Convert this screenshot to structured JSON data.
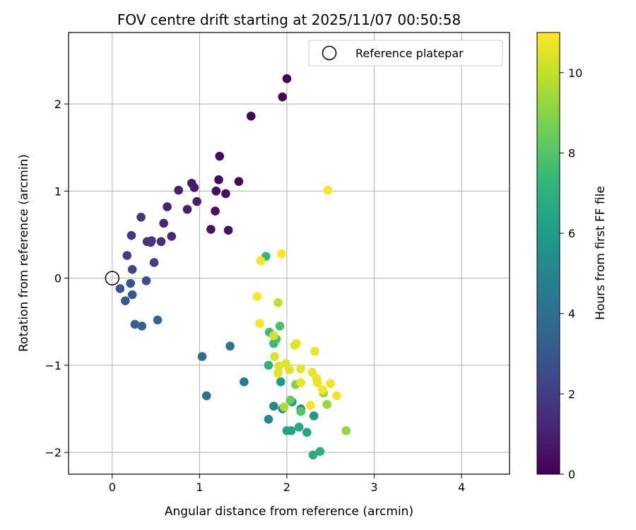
{
  "chart_data": {
    "type": "scatter",
    "title": "FOV centre drift starting at 2025/11/07 00:50:58",
    "xlabel": "Angular distance from reference (arcmin)",
    "ylabel": "Rotation from reference (arcmin)",
    "xlim": [
      -0.5,
      4.55
    ],
    "ylim": [
      -2.25,
      2.82
    ],
    "xticks": [
      0,
      1,
      2,
      3,
      4
    ],
    "xtick_labels": [
      "0",
      "1",
      "2",
      "3",
      "4"
    ],
    "yticks": [
      -2,
      -1,
      0,
      1,
      2
    ],
    "ytick_labels": [
      "−2",
      "−1",
      "0",
      "1",
      "2"
    ],
    "grid": true,
    "legend": {
      "position": "top-right",
      "entries": [
        "Reference platepar"
      ]
    },
    "reference_point": {
      "x": 0,
      "y": 0
    },
    "colorbar": {
      "label": "Hours from first FF file",
      "range": [
        0,
        11
      ],
      "ticks": [
        0,
        2,
        4,
        6,
        8,
        10
      ],
      "tick_labels": [
        "0",
        "2",
        "4",
        "6",
        "8",
        "10"
      ],
      "colormap": "viridis"
    },
    "colormap_stops": [
      "#440154",
      "#482878",
      "#3e4989",
      "#31688e",
      "#26828e",
      "#1f9e89",
      "#35b779",
      "#6ece58",
      "#b5de2b",
      "#fde725"
    ],
    "marker_edge_color": "#000000",
    "points": [
      {
        "x": 2.0,
        "y": 2.29,
        "h": 0.05
      },
      {
        "x": 1.95,
        "y": 2.08,
        "h": 0.1
      },
      {
        "x": 1.59,
        "y": 1.86,
        "h": 0.15
      },
      {
        "x": 1.23,
        "y": 1.4,
        "h": 0.3
      },
      {
        "x": 1.22,
        "y": 1.13,
        "h": 0.35
      },
      {
        "x": 1.45,
        "y": 1.11,
        "h": 0.25
      },
      {
        "x": 1.19,
        "y": 1.0,
        "h": 0.4
      },
      {
        "x": 1.3,
        "y": 0.97,
        "h": 0.45
      },
      {
        "x": 1.18,
        "y": 0.77,
        "h": 0.5
      },
      {
        "x": 1.13,
        "y": 0.56,
        "h": 0.55
      },
      {
        "x": 1.33,
        "y": 0.55,
        "h": 0.6
      },
      {
        "x": 0.91,
        "y": 1.09,
        "h": 0.8
      },
      {
        "x": 0.94,
        "y": 1.04,
        "h": 0.85
      },
      {
        "x": 0.97,
        "y": 0.88,
        "h": 0.9
      },
      {
        "x": 0.86,
        "y": 0.79,
        "h": 0.95
      },
      {
        "x": 0.76,
        "y": 1.01,
        "h": 1.0
      },
      {
        "x": 0.63,
        "y": 0.82,
        "h": 1.1
      },
      {
        "x": 0.59,
        "y": 0.63,
        "h": 1.2
      },
      {
        "x": 0.68,
        "y": 0.48,
        "h": 1.3
      },
      {
        "x": 0.56,
        "y": 0.42,
        "h": 1.4
      },
      {
        "x": 0.45,
        "y": 0.43,
        "h": 1.5
      },
      {
        "x": 0.4,
        "y": 0.42,
        "h": 1.6
      },
      {
        "x": 0.44,
        "y": 0.41,
        "h": 1.7
      },
      {
        "x": 0.33,
        "y": 0.7,
        "h": 1.8
      },
      {
        "x": 0.22,
        "y": 0.49,
        "h": 1.9
      },
      {
        "x": 0.17,
        "y": 0.26,
        "h": 2.0
      },
      {
        "x": 0.48,
        "y": 0.18,
        "h": 2.1
      },
      {
        "x": 0.23,
        "y": 0.1,
        "h": 2.3
      },
      {
        "x": 0.39,
        "y": -0.03,
        "h": 2.6
      },
      {
        "x": 0.21,
        "y": -0.06,
        "h": 2.8
      },
      {
        "x": 0.09,
        "y": -0.12,
        "h": 3.0
      },
      {
        "x": 0.23,
        "y": -0.19,
        "h": 3.1
      },
      {
        "x": 0.15,
        "y": -0.26,
        "h": 3.2
      },
      {
        "x": 0.26,
        "y": -0.53,
        "h": 3.4
      },
      {
        "x": 0.34,
        "y": -0.55,
        "h": 3.5
      },
      {
        "x": 0.52,
        "y": -0.48,
        "h": 3.6
      },
      {
        "x": 1.03,
        "y": -0.9,
        "h": 4.0
      },
      {
        "x": 1.08,
        "y": -1.35,
        "h": 4.1
      },
      {
        "x": 1.35,
        "y": -0.78,
        "h": 4.3
      },
      {
        "x": 1.51,
        "y": -1.19,
        "h": 4.6
      },
      {
        "x": 1.85,
        "y": -1.47,
        "h": 5.0
      },
      {
        "x": 1.79,
        "y": -1.62,
        "h": 5.2
      },
      {
        "x": 1.95,
        "y": -1.5,
        "h": 5.4
      },
      {
        "x": 2.06,
        "y": -1.42,
        "h": 5.6
      },
      {
        "x": 2.16,
        "y": -1.5,
        "h": 5.7
      },
      {
        "x": 2.31,
        "y": -1.58,
        "h": 5.8
      },
      {
        "x": 1.93,
        "y": -1.19,
        "h": 6.0
      },
      {
        "x": 2.0,
        "y": -1.75,
        "h": 6.3
      },
      {
        "x": 2.05,
        "y": -1.75,
        "h": 6.4
      },
      {
        "x": 2.23,
        "y": -1.77,
        "h": 6.5
      },
      {
        "x": 2.14,
        "y": -1.71,
        "h": 6.6
      },
      {
        "x": 2.3,
        "y": -2.03,
        "h": 6.8
      },
      {
        "x": 2.38,
        "y": -1.99,
        "h": 6.9
      },
      {
        "x": 1.79,
        "y": -1.0,
        "h": 7.0
      },
      {
        "x": 1.76,
        "y": 0.25,
        "h": 7.3
      },
      {
        "x": 1.85,
        "y": -0.75,
        "h": 7.4
      },
      {
        "x": 1.8,
        "y": -0.62,
        "h": 7.5
      },
      {
        "x": 1.88,
        "y": -0.7,
        "h": 7.7
      },
      {
        "x": 1.92,
        "y": -0.55,
        "h": 7.8
      },
      {
        "x": 2.16,
        "y": -1.53,
        "h": 8.0
      },
      {
        "x": 2.04,
        "y": -1.4,
        "h": 8.4
      },
      {
        "x": 2.1,
        "y": -1.22,
        "h": 8.9
      },
      {
        "x": 2.68,
        "y": -1.75,
        "h": 9.2
      },
      {
        "x": 2.46,
        "y": -1.45,
        "h": 9.3
      },
      {
        "x": 2.42,
        "y": -1.32,
        "h": 9.5
      },
      {
        "x": 1.97,
        "y": -1.48,
        "h": 9.6
      },
      {
        "x": 1.9,
        "y": -0.28,
        "h": 10.0
      },
      {
        "x": 1.85,
        "y": -0.66,
        "h": 10.3
      },
      {
        "x": 1.86,
        "y": -0.9,
        "h": 10.4
      },
      {
        "x": 1.91,
        "y": -1.01,
        "h": 10.4
      },
      {
        "x": 1.9,
        "y": -1.09,
        "h": 10.5
      },
      {
        "x": 1.99,
        "y": -0.98,
        "h": 10.5
      },
      {
        "x": 2.03,
        "y": -1.05,
        "h": 10.5
      },
      {
        "x": 2.11,
        "y": -0.75,
        "h": 10.6
      },
      {
        "x": 2.09,
        "y": -0.77,
        "h": 10.6
      },
      {
        "x": 2.16,
        "y": -1.04,
        "h": 10.6
      },
      {
        "x": 2.16,
        "y": -1.2,
        "h": 10.6
      },
      {
        "x": 2.29,
        "y": -1.08,
        "h": 10.7
      },
      {
        "x": 2.32,
        "y": -0.84,
        "h": 10.7
      },
      {
        "x": 2.34,
        "y": -1.15,
        "h": 10.7
      },
      {
        "x": 2.35,
        "y": -1.2,
        "h": 10.7
      },
      {
        "x": 2.41,
        "y": -1.28,
        "h": 10.8
      },
      {
        "x": 2.5,
        "y": -1.21,
        "h": 10.8
      },
      {
        "x": 2.57,
        "y": -1.35,
        "h": 10.8
      },
      {
        "x": 2.27,
        "y": -1.46,
        "h": 10.8
      },
      {
        "x": 1.69,
        "y": -0.52,
        "h": 10.9
      },
      {
        "x": 1.66,
        "y": -0.21,
        "h": 10.9
      },
      {
        "x": 1.7,
        "y": 0.2,
        "h": 10.9
      },
      {
        "x": 1.94,
        "y": 0.28,
        "h": 11.0
      },
      {
        "x": 2.47,
        "y": 1.01,
        "h": 11.0
      }
    ]
  }
}
